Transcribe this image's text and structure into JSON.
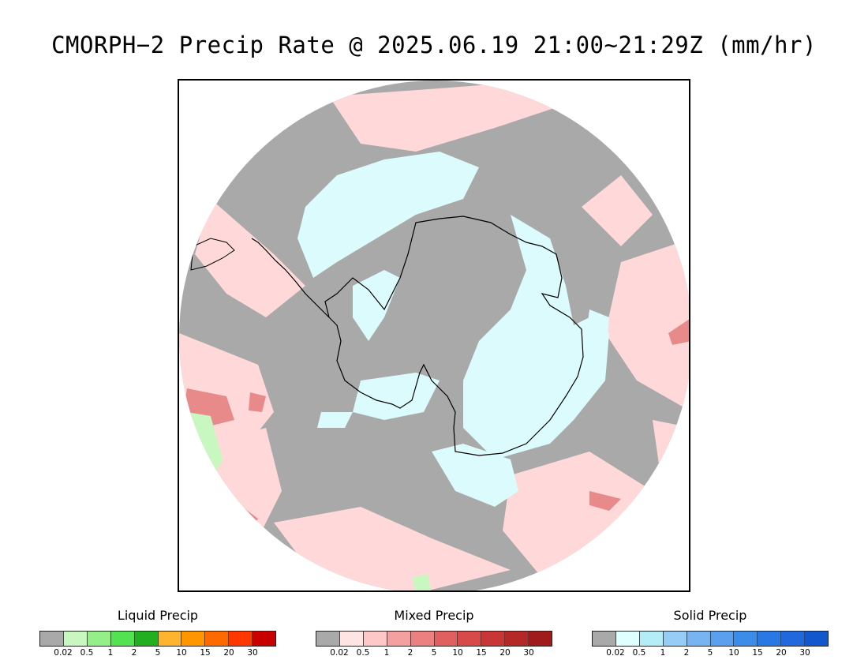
{
  "title": "CMORPH−2 Precip Rate @ 2025.06.19 21:00~21:29Z (mm/hr)",
  "map": {
    "projection": "south-polar-stereographic",
    "background_color": "#a9a9a9",
    "region": "Antarctica / Southern Ocean"
  },
  "legends": [
    {
      "id": "liquid",
      "label": "Liquid Precip",
      "colors": [
        "#a9a9a9",
        "#c8f7c0",
        "#94ef88",
        "#52e252",
        "#22b022",
        "#ffb430",
        "#ff9600",
        "#ff6a00",
        "#ff3800",
        "#c80000"
      ],
      "ticks": [
        "0.02",
        "0.5",
        "1",
        "2",
        "5",
        "10",
        "15",
        "20",
        "30"
      ]
    },
    {
      "id": "mixed",
      "label": "Mixed Precip",
      "colors": [
        "#a9a9a9",
        "#ffe4e4",
        "#ffc8c8",
        "#f5a0a0",
        "#ec8080",
        "#e06060",
        "#d84a4a",
        "#c83636",
        "#b42828",
        "#a01c1c"
      ],
      "ticks": [
        "0.02",
        "0.5",
        "1",
        "2",
        "5",
        "10",
        "15",
        "20",
        "30"
      ]
    },
    {
      "id": "solid",
      "label": "Solid Precip",
      "colors": [
        "#a9a9a9",
        "#e0ffff",
        "#b4ecf8",
        "#96ccf6",
        "#78b4f2",
        "#5aa0ee",
        "#3c8cea",
        "#2a78e4",
        "#2068dc",
        "#1258cc"
      ],
      "ticks": [
        "0.02",
        "0.5",
        "1",
        "2",
        "5",
        "10",
        "15",
        "20",
        "30"
      ]
    }
  ]
}
